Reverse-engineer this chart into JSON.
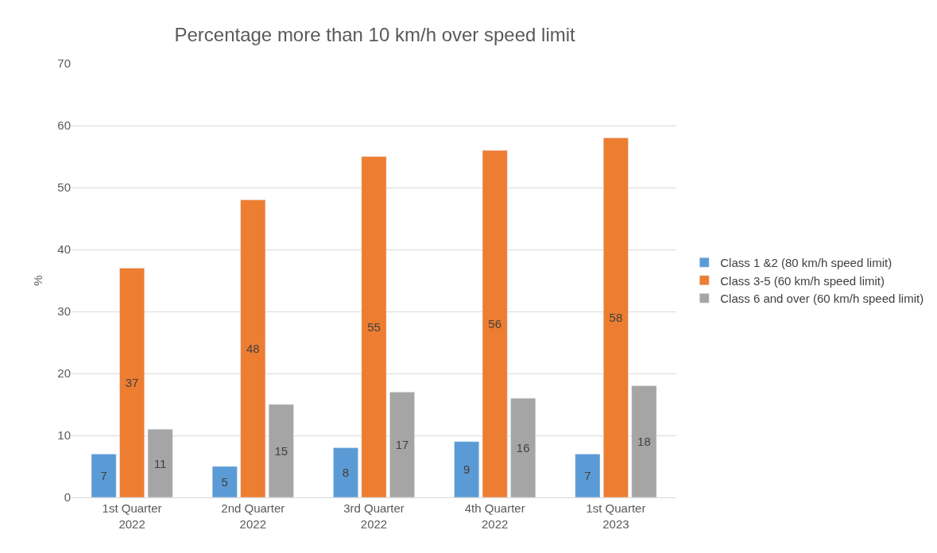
{
  "chart_data": {
    "type": "bar",
    "title": "Percentage more than 10 km/h over speed limit",
    "ylabel": "%",
    "categories": [
      "1st Quarter\n2022",
      "2nd Quarter\n2022",
      "3rd Quarter\n2022",
      "4th Quarter\n2022",
      "1st Quarter\n2023"
    ],
    "series": [
      {
        "name": "Class 1 &2 (80 km/h speed limit)",
        "color": "#5b9bd5",
        "values": [
          7,
          5,
          8,
          9,
          7
        ]
      },
      {
        "name": "Class 3-5 (60 km/h speed limit)",
        "color": "#ed7d31",
        "values": [
          37,
          48,
          55,
          56,
          58
        ]
      },
      {
        "name": "Class 6 and over (60 km/h speed limit)",
        "color": "#a5a5a5",
        "values": [
          11,
          15,
          17,
          16,
          18
        ]
      }
    ],
    "ylim": [
      0,
      70
    ],
    "yticks": [
      0,
      10,
      20,
      30,
      40,
      50,
      60,
      70
    ],
    "grid": "y",
    "legend": "right",
    "data_labels": true
  }
}
